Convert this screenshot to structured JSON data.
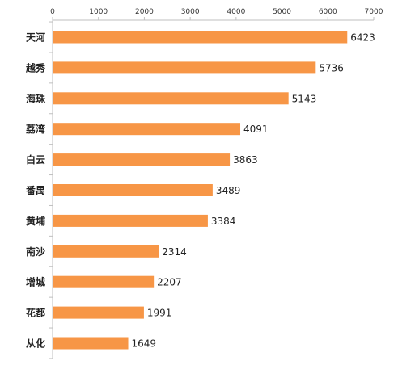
{
  "chart_data": {
    "type": "bar",
    "orientation": "horizontal",
    "title": "",
    "xlabel": "",
    "ylabel": "",
    "xlim": [
      0,
      7000
    ],
    "x_ticks": [
      0,
      1000,
      2000,
      3000,
      4000,
      5000,
      6000,
      7000
    ],
    "x_axis_position": "top",
    "grid": false,
    "legend": "none",
    "bar_color": "#F79646",
    "categories": [
      "天河",
      "越秀",
      "海珠",
      "荔湾",
      "白云",
      "番禺",
      "黄埔",
      "南沙",
      "增城",
      "花都",
      "从化"
    ],
    "values": [
      6423,
      5736,
      5143,
      4091,
      3863,
      3489,
      3384,
      2314,
      2207,
      1991,
      1649
    ],
    "data_labels": [
      "6423",
      "5736",
      "5143",
      "4091",
      "3863",
      "3489",
      "3384",
      "2314",
      "2207",
      "1991",
      "1649"
    ]
  }
}
